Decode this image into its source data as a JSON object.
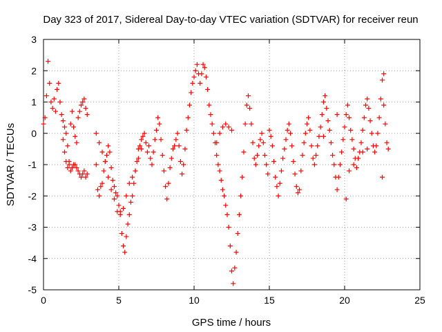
{
  "chart_data": {
    "type": "scatter",
    "title": "Day 323 of 2017, Sidereal Day-to-day VTEC variation (SDTVAR) for receiver reun",
    "xlabel": "GPS time / hours",
    "ylabel": "SDTVAR / TECUs",
    "xlim": [
      0,
      25
    ],
    "ylim": [
      -5,
      3
    ],
    "xticks": [
      "0",
      "5",
      "10",
      "15",
      "20",
      "25"
    ],
    "yticks": [
      "3",
      "2",
      "1",
      "0",
      "-1",
      "-2",
      "-3",
      "-4",
      "-5"
    ],
    "grid": true,
    "marker": "+",
    "color": "#ff0000",
    "series": [
      {
        "name": "SDTVAR",
        "x": [
          0.0,
          0.1,
          0.2,
          0.3,
          0.4,
          0.5,
          0.6,
          0.7,
          0.8,
          0.9,
          1.0,
          1.1,
          1.2,
          1.3,
          1.4,
          1.5,
          1.6,
          1.7,
          1.8,
          1.9,
          2.0,
          2.1,
          2.2,
          2.3,
          2.4,
          2.5,
          2.6,
          2.7,
          2.8,
          2.9,
          1.3,
          1.4,
          1.5,
          1.6,
          1.7,
          1.8,
          1.9,
          2.0,
          2.1,
          2.2,
          2.3,
          2.4,
          2.5,
          2.6,
          2.7,
          2.8,
          2.9,
          3.5,
          3.6,
          3.7,
          3.8,
          3.9,
          4.0,
          4.1,
          4.2,
          4.3,
          4.4,
          4.5,
          4.6,
          4.7,
          4.8,
          4.9,
          5.0,
          5.1,
          5.2,
          5.3,
          5.4,
          5.5,
          5.6,
          5.7,
          5.8,
          5.9,
          6.0,
          6.1,
          6.2,
          6.3,
          6.4,
          6.5,
          6.6,
          6.7,
          6.8,
          6.9,
          3.5,
          3.7,
          3.9,
          4.1,
          4.3,
          4.5,
          4.7,
          4.9,
          5.1,
          5.3,
          5.5,
          5.7,
          5.9,
          6.1,
          6.3,
          6.5,
          7.0,
          7.1,
          7.2,
          7.3,
          7.4,
          7.5,
          7.6,
          7.7,
          7.8,
          7.9,
          8.0,
          8.1,
          8.2,
          8.3,
          8.4,
          8.5,
          8.6,
          8.7,
          8.8,
          8.9,
          9.0,
          9.1,
          9.2,
          9.3,
          9.4,
          9.5,
          9.6,
          9.7,
          9.8,
          9.9,
          10.0,
          10.1,
          10.2,
          10.3,
          10.4,
          10.5,
          10.6,
          10.7,
          10.8,
          10.9,
          11.0,
          11.1,
          11.2,
          11.3,
          11.4,
          11.5,
          11.6,
          11.7,
          11.8,
          11.9,
          12.0,
          12.1,
          12.2,
          12.3,
          12.4,
          12.5,
          12.6,
          12.7,
          12.8,
          12.9,
          13.0,
          13.1,
          13.2,
          13.3,
          13.4,
          13.5,
          13.6,
          13.7,
          13.8,
          13.9,
          14.0,
          14.1,
          14.2,
          14.3,
          14.4,
          14.5,
          14.6,
          14.7,
          14.8,
          14.9,
          11.5,
          11.7,
          11.9,
          12.1,
          12.3,
          12.5,
          15.0,
          15.1,
          15.2,
          15.3,
          15.4,
          15.5,
          15.6,
          15.7,
          15.8,
          15.9,
          16.0,
          16.1,
          16.2,
          16.3,
          16.4,
          16.5,
          16.6,
          16.7,
          16.8,
          16.9,
          17.0,
          17.1,
          17.2,
          17.3,
          17.4,
          17.5,
          17.6,
          17.7,
          17.8,
          17.9,
          18.0,
          18.1,
          18.2,
          18.3,
          18.4,
          18.5,
          18.6,
          18.7,
          18.8,
          18.9,
          19.0,
          19.1,
          19.2,
          19.3,
          19.4,
          19.5,
          19.6,
          19.7,
          19.8,
          19.9,
          20.0,
          20.1,
          20.2,
          20.3,
          20.4,
          20.5,
          20.6,
          20.7,
          20.8,
          20.9,
          21.0,
          21.1,
          21.2,
          21.3,
          21.4,
          21.5,
          21.6,
          21.7,
          21.8,
          21.9,
          22.0,
          22.1,
          22.2,
          22.3,
          22.4,
          22.5,
          22.6,
          22.7,
          22.8,
          22.9,
          20.3,
          20.6,
          20.9,
          21.2,
          21.5,
          22.5,
          22.6,
          18.6,
          19.5,
          20.1
        ],
        "y": [
          0.3,
          0.5,
          1.2,
          2.3,
          1.6,
          1.0,
          0.8,
          1.1,
          0.7,
          1.4,
          1.6,
          1.0,
          0.6,
          -0.2,
          -0.6,
          -0.9,
          -1.1,
          -0.9,
          0.3,
          0.7,
          0.2,
          -0.1,
          -0.3,
          0.5,
          0.7,
          0.9,
          1.0,
          1.1,
          0.8,
          0.6,
          0.4,
          0.2,
          0.0,
          -0.4,
          -1.0,
          -1.2,
          -1.1,
          -1.0,
          -1.0,
          -1.1,
          -1.2,
          -1.3,
          -1.4,
          -1.3,
          -1.2,
          -1.4,
          -1.3,
          -1.0,
          -1.8,
          -2.0,
          -1.7,
          -1.6,
          -1.2,
          -0.9,
          -0.7,
          -0.4,
          -0.6,
          -1.1,
          -1.5,
          -1.7,
          -1.9,
          -2.0,
          -2.3,
          -2.5,
          -3.2,
          -3.6,
          -3.8,
          -3.3,
          -2.9,
          -2.6,
          -2.2,
          -2.0,
          -1.6,
          -1.2,
          -0.9,
          -0.5,
          -0.4,
          -0.2,
          -0.1,
          0.0,
          -0.3,
          -0.6,
          0.0,
          -0.3,
          -0.6,
          -0.9,
          -1.4,
          -1.8,
          -2.1,
          -2.5,
          -2.6,
          -2.4,
          -2.0,
          -1.6,
          -1.4,
          -1.2,
          -0.8,
          -0.5,
          -0.4,
          -0.8,
          -1.0,
          -0.6,
          -0.2,
          0.1,
          0.5,
          0.3,
          -0.2,
          -0.7,
          -1.2,
          -1.7,
          -2.1,
          -1.6,
          -1.1,
          -0.8,
          -0.5,
          -0.4,
          -0.2,
          0.0,
          -0.4,
          -0.9,
          -1.3,
          -1.0,
          -0.5,
          0.1,
          0.5,
          0.9,
          1.3,
          1.6,
          1.8,
          2.0,
          2.2,
          1.9,
          1.6,
          1.9,
          2.2,
          2.1,
          1.8,
          1.4,
          0.9,
          0.6,
          0.3,
          0.0,
          -0.3,
          -0.7,
          -1.0,
          -1.2,
          -1.5,
          -1.8,
          -2.0,
          -2.3,
          -2.6,
          -3.0,
          -3.6,
          -4.4,
          -4.8,
          -4.3,
          -3.8,
          -3.2,
          -2.6,
          -2.0,
          -1.4,
          -0.6,
          0.3,
          0.9,
          1.2,
          0.8,
          0.3,
          -0.3,
          -0.8,
          -1.0,
          -0.7,
          -0.4,
          -0.2,
          0.0,
          -0.3,
          -0.7,
          -1.0,
          -1.3,
          -0.3,
          0.0,
          0.2,
          0.3,
          0.2,
          0.1,
          0.1,
          -0.1,
          -0.4,
          -0.9,
          -1.4,
          -1.7,
          -2.0,
          -1.6,
          -1.2,
          -0.8,
          -0.5,
          -0.2,
          0.1,
          0.3,
          0.0,
          -0.4,
          -0.9,
          -1.3,
          -1.7,
          -1.9,
          -1.8,
          -1.2,
          -0.7,
          -0.3,
          0.0,
          0.3,
          0.5,
          0.1,
          -0.4,
          -0.8,
          -1.0,
          -0.7,
          -0.4,
          -0.1,
          0.2,
          0.6,
          1.0,
          1.2,
          0.8,
          0.4,
          0.1,
          -0.3,
          -0.7,
          -1.0,
          -1.4,
          -1.8,
          -1.4,
          -1.0,
          -0.6,
          -0.2,
          0.2,
          0.6,
          0.9,
          0.5,
          0.1,
          -0.2,
          -0.5,
          -0.8,
          -1.1,
          -0.8,
          -0.6,
          -0.3,
          0.1,
          0.5,
          0.9,
          1.1,
          0.8,
          0.4,
          0.0,
          -0.4,
          -0.6,
          -0.4,
          0.0,
          0.5,
          1.1,
          1.7,
          0.9,
          0.3,
          -0.3,
          -0.5,
          -1.2,
          -1.0,
          -0.8,
          -0.6,
          -0.5,
          -1.4,
          1.9,
          -0.1,
          0.6,
          -2.1
        ]
      }
    ]
  }
}
